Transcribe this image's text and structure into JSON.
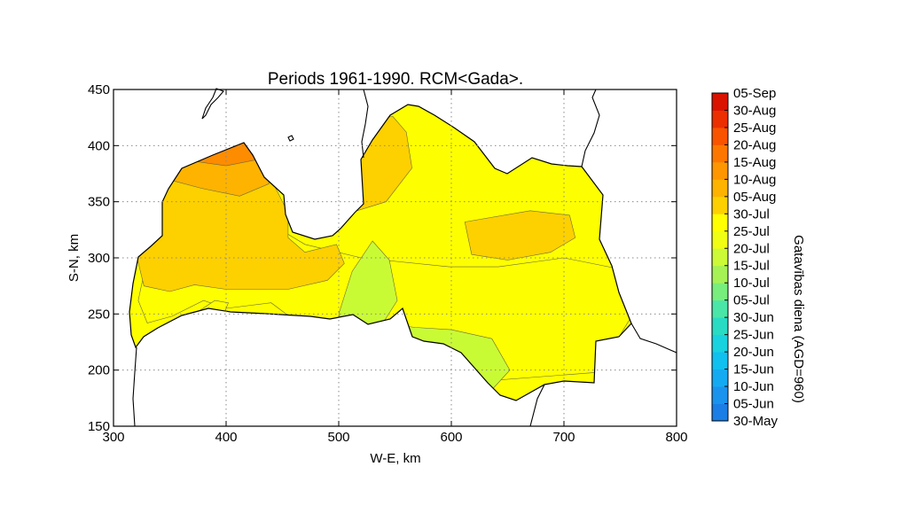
{
  "chart_data": {
    "type": "filled-contour-map",
    "title": "Periods 1961-1990. RCM<Gada>.",
    "xlabel": "W-E, km",
    "ylabel": "S-N, km",
    "xlim": [
      300,
      800
    ],
    "ylim": [
      150,
      450
    ],
    "xticks": [
      "300",
      "400",
      "500",
      "600",
      "700",
      "800"
    ],
    "yticks": [
      "150",
      "200",
      "250",
      "300",
      "350",
      "400",
      "450"
    ],
    "grid": true,
    "colorbar": {
      "label": "Gatavības diena (AGD=960)",
      "levels": [
        "30-May",
        "05-Jun",
        "10-Jun",
        "15-Jun",
        "20-Jun",
        "25-Jun",
        "30-Jun",
        "05-Jul",
        "10-Jul",
        "15-Jul",
        "20-Jul",
        "25-Jul",
        "30-Jul",
        "05-Aug",
        "10-Aug",
        "15-Aug",
        "20-Aug",
        "25-Aug",
        "30-Aug",
        "05-Sep"
      ],
      "colors": [
        "#1a7ee6",
        "#1a93ee",
        "#14aaf2",
        "#10c0ef",
        "#18d2df",
        "#28dcc4",
        "#4ae6a8",
        "#78ee7c",
        "#a6f255",
        "#ccfa37",
        "#f0fe14",
        "#ffff00",
        "#fdd000",
        "#fdb300",
        "#fd9600",
        "#fd7700",
        "#f95300",
        "#ec2f00",
        "#da1300"
      ]
    },
    "regions": [
      {
        "range": [
          "20-Jul",
          "25-Jul"
        ],
        "color": "#fdff00",
        "points": [
          [
            338,
            353
          ],
          [
            390,
            350
          ],
          [
            416,
            345
          ],
          [
            440,
            330
          ],
          [
            470,
            312
          ],
          [
            520,
            300
          ],
          [
            598,
            292
          ],
          [
            642,
            292
          ],
          [
            700,
            300
          ],
          [
            750,
            290
          ],
          [
            760,
            248
          ],
          [
            730,
            198
          ],
          [
            600,
            188
          ],
          [
            520,
            240
          ],
          [
            460,
            245
          ],
          [
            440,
            260
          ],
          [
            400,
            255
          ],
          [
            380,
            262
          ],
          [
            352,
            248
          ],
          [
            330,
            242
          ],
          [
            322,
            262
          ],
          [
            330,
            300
          ]
        ]
      },
      {
        "range": [
          "25-Jul",
          "30-Jul"
        ],
        "color": "#fdd000",
        "points": [
          [
            318,
            312
          ],
          [
            330,
            345
          ],
          [
            348,
            370
          ],
          [
            368,
            385
          ],
          [
            400,
            390
          ],
          [
            440,
            370
          ],
          [
            455,
            340
          ],
          [
            455,
            318
          ],
          [
            470,
            305
          ],
          [
            498,
            312
          ],
          [
            505,
            295
          ],
          [
            490,
            280
          ],
          [
            455,
            272
          ],
          [
            400,
            272
          ],
          [
            372,
            276
          ],
          [
            350,
            270
          ],
          [
            327,
            275
          ]
        ]
      },
      {
        "range": [
          "25-Jul",
          "30-Jul"
        ],
        "color": "#fdd000",
        "points": [
          [
            490,
            410
          ],
          [
            505,
            420
          ],
          [
            548,
            426
          ],
          [
            560,
            412
          ],
          [
            565,
            380
          ],
          [
            542,
            350
          ],
          [
            510,
            340
          ],
          [
            486,
            362
          ]
        ]
      },
      {
        "range": [
          "25-Jul",
          "30-Jul"
        ],
        "color": "#fdd000",
        "points": [
          [
            612,
            332
          ],
          [
            670,
            342
          ],
          [
            705,
            338
          ],
          [
            710,
            318
          ],
          [
            688,
            305
          ],
          [
            650,
            298
          ],
          [
            618,
            303
          ]
        ]
      },
      {
        "range": [
          "05-Aug",
          "10-Aug"
        ],
        "color": "#fdb300",
        "points": [
          [
            348,
            370
          ],
          [
            362,
            392
          ],
          [
            398,
            402
          ],
          [
            434,
            394
          ],
          [
            438,
            366
          ],
          [
            412,
            355
          ],
          [
            378,
            362
          ]
        ]
      },
      {
        "range": [
          "10-Aug",
          "15-Aug"
        ],
        "color": "#fd8c00",
        "points": [
          [
            355,
            395
          ],
          [
            380,
            405
          ],
          [
            418,
            402
          ],
          [
            430,
            388
          ],
          [
            400,
            382
          ],
          [
            372,
            386
          ]
        ]
      },
      {
        "range": [
          "15-Jul",
          "20-Jul"
        ],
        "color": "#c9fb35",
        "points": [
          [
            500,
            250
          ],
          [
            512,
            288
          ],
          [
            530,
            315
          ],
          [
            545,
            298
          ],
          [
            552,
            262
          ],
          [
            538,
            240
          ],
          [
            520,
            236
          ],
          [
            504,
            238
          ]
        ]
      },
      {
        "range": [
          "15-Jul",
          "20-Jul"
        ],
        "color": "#c9fb35",
        "points": [
          [
            552,
            240
          ],
          [
            572,
            215
          ],
          [
            602,
            192
          ],
          [
            632,
            178
          ],
          [
            652,
            200
          ],
          [
            636,
            228
          ],
          [
            600,
            236
          ],
          [
            568,
            238
          ]
        ]
      },
      {
        "range": [
          "20-Jul",
          "25-Jul"
        ],
        "color": "#fdff00",
        "points": [
          [
            375,
            252
          ],
          [
            390,
            262
          ],
          [
            402,
            260
          ],
          [
            398,
            250
          ]
        ]
      }
    ]
  }
}
